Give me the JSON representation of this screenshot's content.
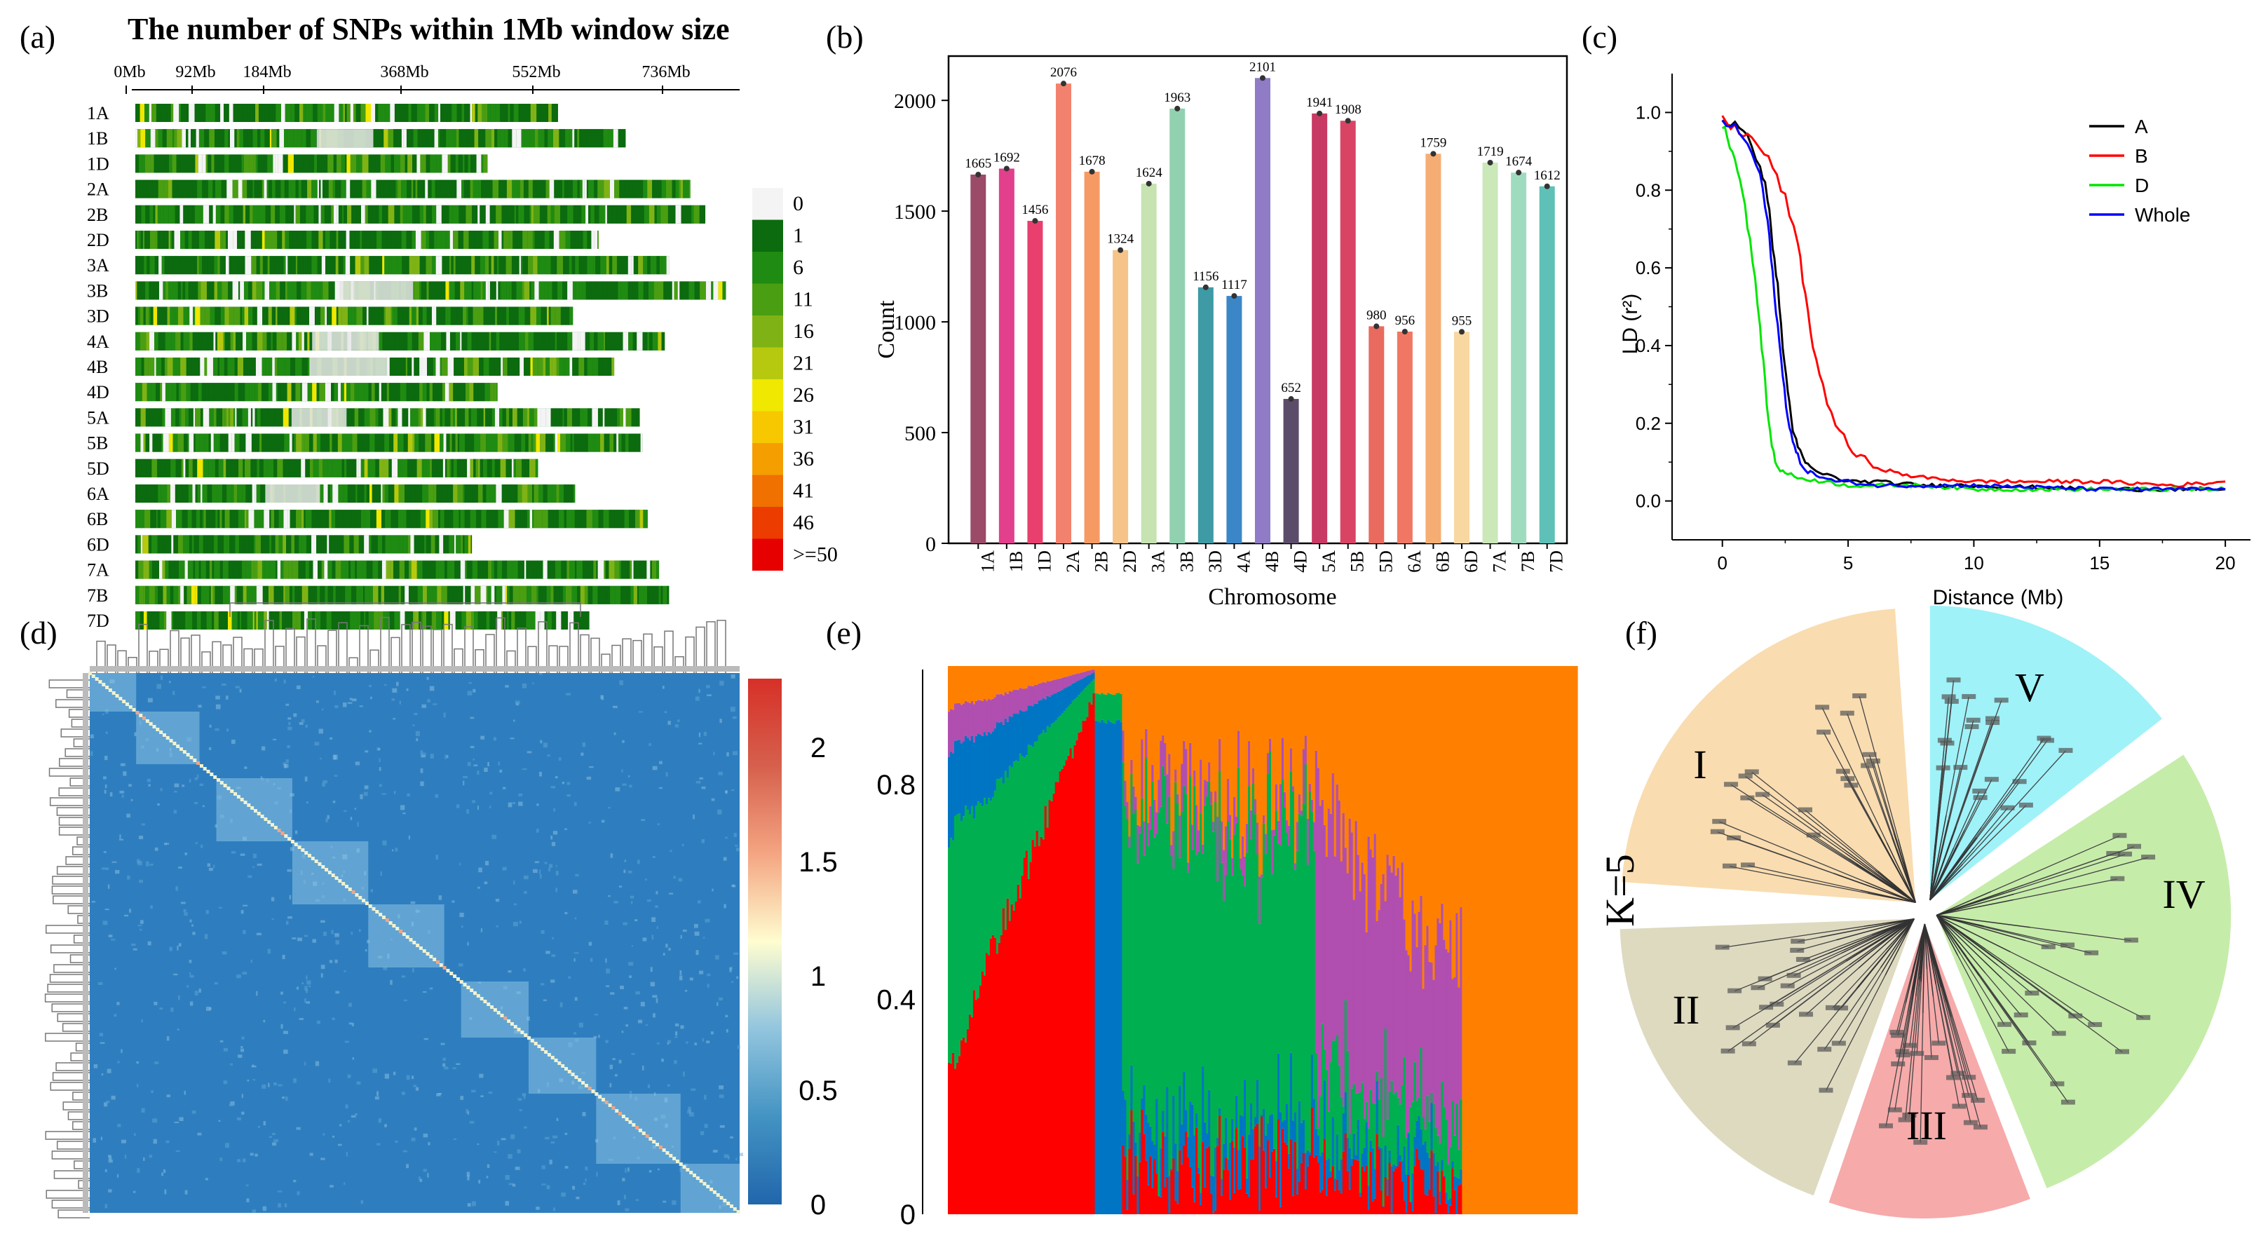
{
  "panel_labels": {
    "a": "(a)",
    "b": "(b)",
    "c": "(c)",
    "d": "(d)",
    "e": "(e)",
    "f": "(f)"
  },
  "chart_data": [
    {
      "panel": "a",
      "type": "heatmap",
      "title": "The number of SNPs within 1Mb window size",
      "x_ticks": [
        "0Mb",
        "92Mb",
        "184Mb",
        "368Mb",
        "552Mb",
        "736Mb"
      ],
      "x_tick_values": [
        0,
        92,
        184,
        368,
        552,
        736
      ],
      "chromosomes": [
        "1A",
        "1B",
        "1D",
        "2A",
        "2B",
        "2D",
        "3A",
        "3B",
        "3D",
        "4A",
        "4B",
        "4D",
        "5A",
        "5B",
        "5D",
        "6A",
        "6B",
        "6D",
        "7A",
        "7B",
        "7D"
      ],
      "lengths_mb": [
        594,
        689,
        495,
        780,
        801,
        651,
        750,
        830,
        615,
        744,
        673,
        509,
        709,
        713,
        566,
        618,
        720,
        473,
        736,
        750,
        638
      ],
      "legend_labels": [
        "0",
        "1",
        "6",
        "11",
        "16",
        "21",
        "26",
        "31",
        "36",
        "41",
        "46",
        ">=50"
      ],
      "legend_colors": [
        "#f4f4f4",
        "#0b6b0e",
        "#1f8b12",
        "#4a9e12",
        "#7fb315",
        "#b7c90e",
        "#f0e800",
        "#f7c700",
        "#f59e00",
        "#f07000",
        "#ec3c00",
        "#e60000"
      ]
    },
    {
      "panel": "b",
      "type": "bar",
      "xlabel": "Chromosome",
      "ylabel": "Count",
      "ylim": [
        0,
        2200
      ],
      "y_ticks": [
        0,
        500,
        1000,
        1500,
        2000
      ],
      "categories": [
        "1A",
        "1B",
        "1D",
        "2A",
        "2B",
        "2D",
        "3A",
        "3B",
        "3D",
        "4A",
        "4B",
        "4D",
        "5A",
        "5B",
        "5D",
        "6A",
        "6B",
        "6D",
        "7A",
        "7B",
        "7D"
      ],
      "values": [
        1665,
        1692,
        1456,
        2076,
        1678,
        1324,
        1624,
        1963,
        1156,
        1117,
        2101,
        652,
        1941,
        1908,
        980,
        956,
        1759,
        955,
        1719,
        1674,
        1612
      ],
      "colors": [
        "#9b4a68",
        "#e23f8c",
        "#e83f6e",
        "#f2826e",
        "#f69a63",
        "#f6c389",
        "#c6e3b1",
        "#91d1b0",
        "#3e9aa4",
        "#3b86c6",
        "#8f7bc6",
        "#5b4d6a",
        "#c83a63",
        "#d94465",
        "#e96a5e",
        "#ef7763",
        "#f5ad73",
        "#f8d7a0",
        "#cbe8b9",
        "#9fdcbf",
        "#5fc0b8"
      ]
    },
    {
      "panel": "c",
      "type": "line",
      "xlabel": "Distance (Mb)",
      "ylabel": "LD (r²)",
      "xlim": [
        -2,
        21
      ],
      "ylim": [
        -0.1,
        1.1
      ],
      "x_ticks": [
        "0",
        "5",
        "10",
        "15",
        "20"
      ],
      "y_ticks": [
        "0.0",
        "0.2",
        "0.4",
        "0.6",
        "0.8",
        "1.0"
      ],
      "series": [
        {
          "name": "A",
          "color": "#000000",
          "x": [
            0,
            0.5,
            1,
            1.5,
            1.8,
            2,
            2.2,
            2.4,
            2.6,
            2.8,
            3,
            3.3,
            3.6,
            4,
            4.5,
            5,
            6,
            8,
            10,
            15,
            20
          ],
          "y": [
            0.98,
            0.97,
            0.93,
            0.87,
            0.78,
            0.66,
            0.55,
            0.4,
            0.28,
            0.19,
            0.13,
            0.1,
            0.08,
            0.07,
            0.06,
            0.05,
            0.05,
            0.04,
            0.04,
            0.03,
            0.03
          ]
        },
        {
          "name": "B",
          "color": "#ff0000",
          "x": [
            0,
            0.5,
            1,
            1.5,
            2,
            2.5,
            3,
            3.3,
            3.6,
            4,
            4.5,
            5,
            5.5,
            6,
            7,
            8,
            10,
            12,
            15,
            18,
            20
          ],
          "y": [
            0.98,
            0.96,
            0.94,
            0.91,
            0.86,
            0.78,
            0.66,
            0.53,
            0.4,
            0.29,
            0.2,
            0.14,
            0.11,
            0.09,
            0.07,
            0.06,
            0.05,
            0.05,
            0.05,
            0.04,
            0.05
          ]
        },
        {
          "name": "D",
          "color": "#00e600",
          "x": [
            0,
            0.3,
            0.6,
            0.9,
            1.2,
            1.5,
            1.7,
            1.9,
            2.1,
            2.3,
            2.6,
            3,
            4,
            5,
            8,
            10,
            15,
            20
          ],
          "y": [
            0.97,
            0.92,
            0.86,
            0.76,
            0.62,
            0.45,
            0.3,
            0.17,
            0.1,
            0.08,
            0.07,
            0.06,
            0.05,
            0.04,
            0.04,
            0.03,
            0.03,
            0.03
          ]
        },
        {
          "name": "Whole",
          "color": "#0000ff",
          "x": [
            0,
            0.5,
            1,
            1.5,
            1.8,
            2,
            2.2,
            2.4,
            2.6,
            2.8,
            3,
            3.3,
            3.6,
            4,
            4.5,
            5,
            6,
            8,
            10,
            15,
            20
          ],
          "y": [
            0.98,
            0.96,
            0.92,
            0.84,
            0.72,
            0.58,
            0.45,
            0.32,
            0.22,
            0.15,
            0.11,
            0.08,
            0.07,
            0.06,
            0.05,
            0.05,
            0.04,
            0.04,
            0.04,
            0.03,
            0.03
          ]
        }
      ]
    },
    {
      "panel": "d",
      "type": "heatmap",
      "colorbar_ticks": [
        "0",
        "0.5",
        "1",
        "1.5",
        "2"
      ],
      "colorbar_range": [
        0,
        2.3
      ],
      "colorbar_colors": [
        "#2166ac",
        "#4393c3",
        "#92c5de",
        "#fffdd0",
        "#f4a582",
        "#d6604d",
        "#d73027"
      ]
    },
    {
      "panel": "e",
      "type": "bar",
      "y_ticks": [
        "0",
        "0.4",
        "0.8"
      ],
      "ylim": [
        0,
        1
      ],
      "colors": [
        "#ff0000",
        "#0075c4",
        "#00b050",
        "#b04fb0",
        "#ff8000"
      ]
    },
    {
      "panel": "f",
      "type": "tree",
      "k_label": "K=5",
      "groups": [
        {
          "name": "I",
          "color": "#f9dcb0"
        },
        {
          "name": "II",
          "color": "#dedac0"
        },
        {
          "name": "III",
          "color": "#f6aaaa"
        },
        {
          "name": "IV",
          "color": "#c6ecaa"
        },
        {
          "name": "V",
          "color": "#9ff2f8"
        }
      ]
    }
  ]
}
